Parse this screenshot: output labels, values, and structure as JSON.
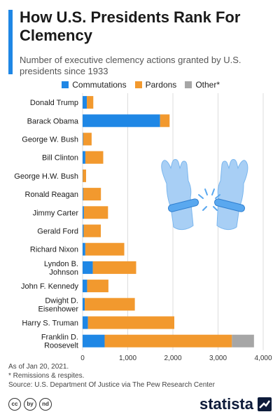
{
  "header": {
    "title": "How U.S. Presidents Rank For Clemency",
    "subtitle": "Number of executive clemency actions granted by U.S. presidents since 1933"
  },
  "legend": [
    {
      "label": "Commutations",
      "color": "#1f87e5"
    },
    {
      "label": "Pardons",
      "color": "#f2992e"
    },
    {
      "label": "Other*",
      "color": "#a6a6a6"
    }
  ],
  "chart_data": {
    "type": "bar",
    "orientation": "horizontal",
    "stacked": true,
    "categories": [
      "Donald Trump",
      "Barack Obama",
      "George W. Bush",
      "Bill Clinton",
      "George H.W. Bush",
      "Ronald Reagan",
      "Jimmy Carter",
      "Gerald Ford",
      "Richard Nixon",
      "Lyndon B. Johnson",
      "John F. Kennedy",
      "Dwight D. Eisenhower",
      "Harry S. Truman",
      "Franklin D. Roosevelt"
    ],
    "series": [
      {
        "name": "Commutations",
        "color": "#1f87e5",
        "values": [
          94,
          1715,
          11,
          61,
          3,
          13,
          29,
          22,
          60,
          226,
          100,
          47,
          118,
          488
        ]
      },
      {
        "name": "Pardons",
        "color": "#f2992e",
        "values": [
          143,
          212,
          189,
          396,
          74,
          393,
          534,
          382,
          863,
          960,
          472,
          1110,
          1913,
          2819
        ]
      },
      {
        "name": "Other*",
        "color": "#a6a6a6",
        "values": [
          0,
          0,
          0,
          0,
          0,
          0,
          0,
          0,
          0,
          0,
          0,
          0,
          0,
          489
        ]
      }
    ],
    "xlim": [
      0,
      4000
    ],
    "xticks": [
      "0",
      "1,000",
      "2,000",
      "3,000",
      "4,000"
    ],
    "grid": true
  },
  "notes": {
    "date": "As of Jan 20, 2021.",
    "footnote": "* Remissions & respites.",
    "source": "Source: U.S. Department Of Justice via The Pew Research Center"
  },
  "footer": {
    "cc_icons": [
      "cc",
      "by",
      "nd"
    ],
    "brand": "statista"
  }
}
